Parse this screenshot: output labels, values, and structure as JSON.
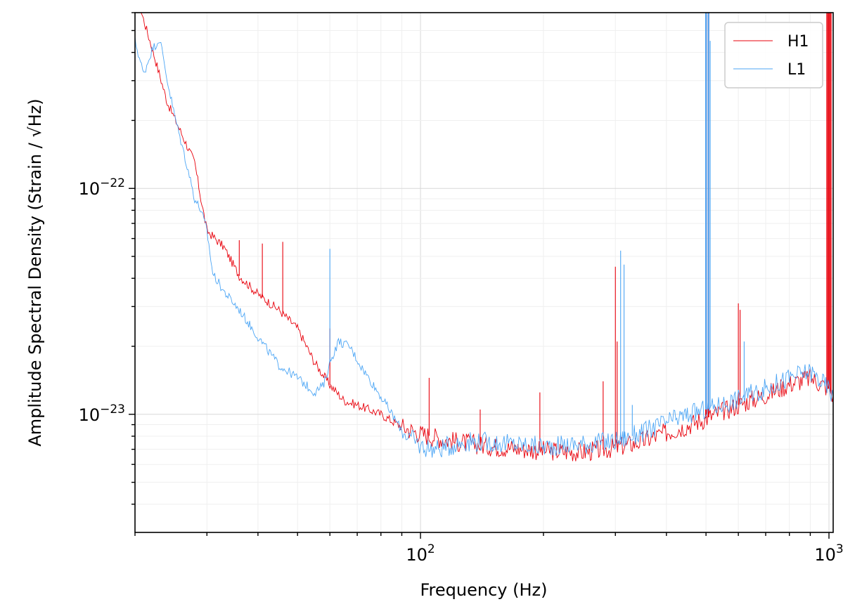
{
  "chart_data": {
    "type": "line",
    "title": "",
    "xlabel": "Frequency (Hz)",
    "ylabel": "Amplitude Spectral Density (Strain / √Hz)",
    "x_scale": "log",
    "y_scale": "log",
    "xlim": [
      20,
      1024
    ],
    "ylim": [
      3e-24,
      6e-22
    ],
    "grid": "on (major and minor, light)",
    "legend_position": "top-right",
    "x_ticks": [
      {
        "value": 100,
        "base": "10",
        "exp": "2"
      },
      {
        "value": 1000,
        "base": "10",
        "exp": "3"
      }
    ],
    "y_ticks": [
      {
        "value": 1e-23,
        "base": "10",
        "exp": "−23"
      },
      {
        "value": 1e-22,
        "base": "10",
        "exp": "−22"
      }
    ],
    "series": [
      {
        "name": "H1",
        "color": "#e8000b",
        "points": [
          [
            20,
            7.5e-22
          ],
          [
            22,
            4.2e-22
          ],
          [
            24,
            2.4e-22
          ],
          [
            26,
            1.75e-22
          ],
          [
            28,
            1.3e-22
          ],
          [
            29,
            9e-23
          ],
          [
            30,
            6.5e-23
          ],
          [
            33,
            5.5e-23
          ],
          [
            36,
            4.1e-23
          ],
          [
            40,
            3.4e-23
          ],
          [
            45,
            2.9e-23
          ],
          [
            50,
            2.4e-23
          ],
          [
            55,
            1.7e-23
          ],
          [
            60,
            1.35e-23
          ],
          [
            65,
            1.15e-23
          ],
          [
            70,
            1.1e-23
          ],
          [
            80,
            1e-23
          ],
          [
            90,
            8.8e-24
          ],
          [
            100,
            8.2e-24
          ],
          [
            120,
            7.6e-24
          ],
          [
            150,
            7.2e-24
          ],
          [
            200,
            6.9e-24
          ],
          [
            250,
            6.8e-24
          ],
          [
            300,
            7.1e-24
          ],
          [
            350,
            7.6e-24
          ],
          [
            400,
            8.3e-24
          ],
          [
            450,
            8.9e-24
          ],
          [
            500,
            9.6e-24
          ],
          [
            550,
            1.03e-23
          ],
          [
            600,
            1.1e-23
          ],
          [
            700,
            1.22e-23
          ],
          [
            800,
            1.36e-23
          ],
          [
            900,
            1.45e-23
          ],
          [
            1000,
            1.3e-23
          ],
          [
            1024,
            1.2e-23
          ]
        ],
        "lines": [
          [
            36,
            5.9e-23
          ],
          [
            41,
            5.7e-23
          ],
          [
            46,
            5.8e-23
          ],
          [
            60,
            2.4e-23
          ],
          [
            105,
            1.45e-23
          ],
          [
            140,
            1.05e-23
          ],
          [
            196,
            1.25e-23
          ],
          [
            280,
            1.4e-23
          ],
          [
            300,
            4.5e-23
          ],
          [
            303,
            2.1e-23
          ],
          [
            500,
            6e-22
          ],
          [
            507,
            6e-22
          ],
          [
            600,
            3.1e-23
          ],
          [
            606,
            2.9e-23
          ],
          [
            990,
            6e-22
          ],
          [
            1000,
            6e-22
          ],
          [
            1010,
            6e-22
          ]
        ]
      },
      {
        "name": "L1",
        "color": "#4da6f5",
        "points": [
          [
            20,
            4.5e-22
          ],
          [
            21,
            3.2e-22
          ],
          [
            22,
            4.1e-22
          ],
          [
            23,
            4.6e-22
          ],
          [
            24,
            3e-22
          ],
          [
            25,
            2.1e-22
          ],
          [
            27,
            1.2e-22
          ],
          [
            28,
            9e-23
          ],
          [
            29,
            8e-23
          ],
          [
            30,
            6.5e-23
          ],
          [
            31,
            4.2e-23
          ],
          [
            33,
            3.5e-23
          ],
          [
            36,
            2.9e-23
          ],
          [
            40,
            2.2e-23
          ],
          [
            45,
            1.65e-23
          ],
          [
            50,
            1.45e-23
          ],
          [
            55,
            1.25e-23
          ],
          [
            58,
            1.35e-23
          ],
          [
            60,
            1.7e-23
          ],
          [
            63,
            2.1e-23
          ],
          [
            67,
            2e-23
          ],
          [
            72,
            1.6e-23
          ],
          [
            80,
            1.2e-23
          ],
          [
            90,
            8.5e-24
          ],
          [
            100,
            7.2e-24
          ],
          [
            110,
            7e-24
          ],
          [
            130,
            7.6e-24
          ],
          [
            150,
            7.5e-24
          ],
          [
            200,
            7.2e-24
          ],
          [
            250,
            7.4e-24
          ],
          [
            300,
            7.6e-24
          ],
          [
            350,
            8.3e-24
          ],
          [
            400,
            9.2e-24
          ],
          [
            450,
            9.9e-24
          ],
          [
            500,
            1.05e-23
          ],
          [
            600,
            1.17e-23
          ],
          [
            700,
            1.3e-23
          ],
          [
            800,
            1.45e-23
          ],
          [
            900,
            1.55e-23
          ],
          [
            1000,
            1.3e-23
          ],
          [
            1024,
            1.2e-23
          ]
        ],
        "lines": [
          [
            60,
            5.4e-23
          ],
          [
            309,
            5.3e-23
          ],
          [
            315,
            4.6e-23
          ],
          [
            330,
            1.1e-23
          ],
          [
            500,
            6e-22
          ],
          [
            507,
            6e-22
          ],
          [
            512,
            4.5e-22
          ],
          [
            620,
            2.1e-23
          ]
        ]
      }
    ]
  }
}
